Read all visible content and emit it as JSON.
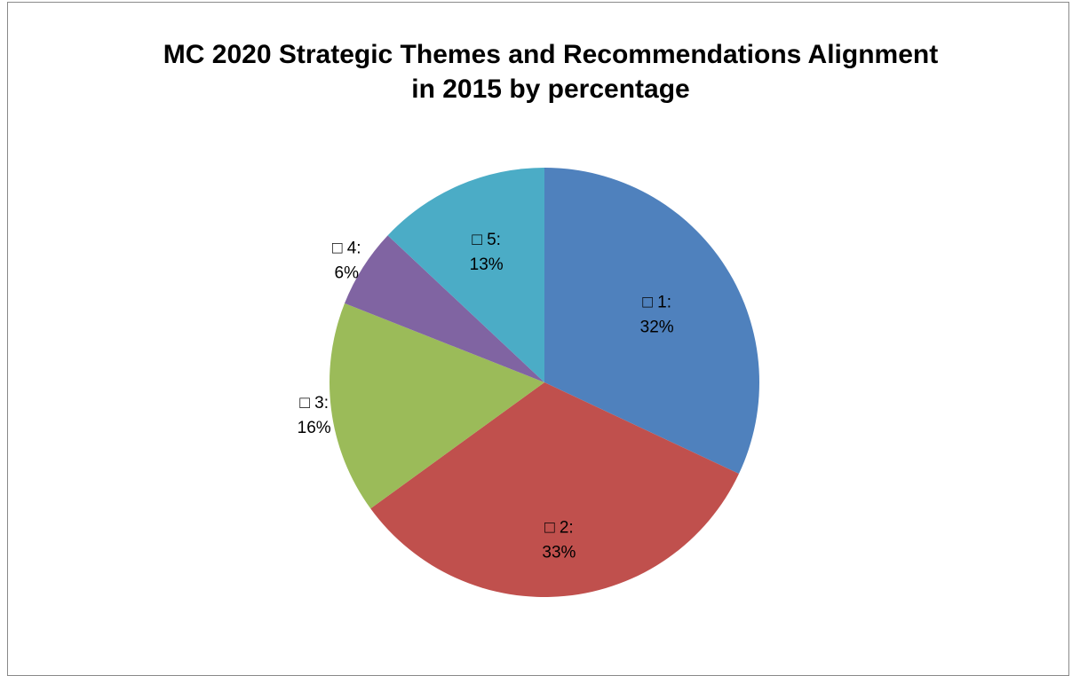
{
  "chart_data": {
    "type": "pie",
    "title_lines": [
      "MC 2020 Strategic Themes and Recommendations Alignment",
      "in 2015 by percentage"
    ],
    "slices": [
      {
        "category": "1",
        "value": 32,
        "color": "#4F81BD",
        "label_top": "□ 1:",
        "label_bottom": "32%"
      },
      {
        "category": "2",
        "value": 33,
        "color": "#C0504D",
        "label_top": "□ 2:",
        "label_bottom": "33%"
      },
      {
        "category": "3",
        "value": 16,
        "color": "#9BBB59",
        "label_top": "□ 3:",
        "label_bottom": "16%"
      },
      {
        "category": "4",
        "value": 6,
        "color": "#8064A2",
        "label_top": "□ 4:",
        "label_bottom": "6%"
      },
      {
        "category": "5",
        "value": 13,
        "color": "#4BACC6",
        "label_top": "□ 5:",
        "label_bottom": "13%"
      }
    ],
    "legend": "none"
  }
}
